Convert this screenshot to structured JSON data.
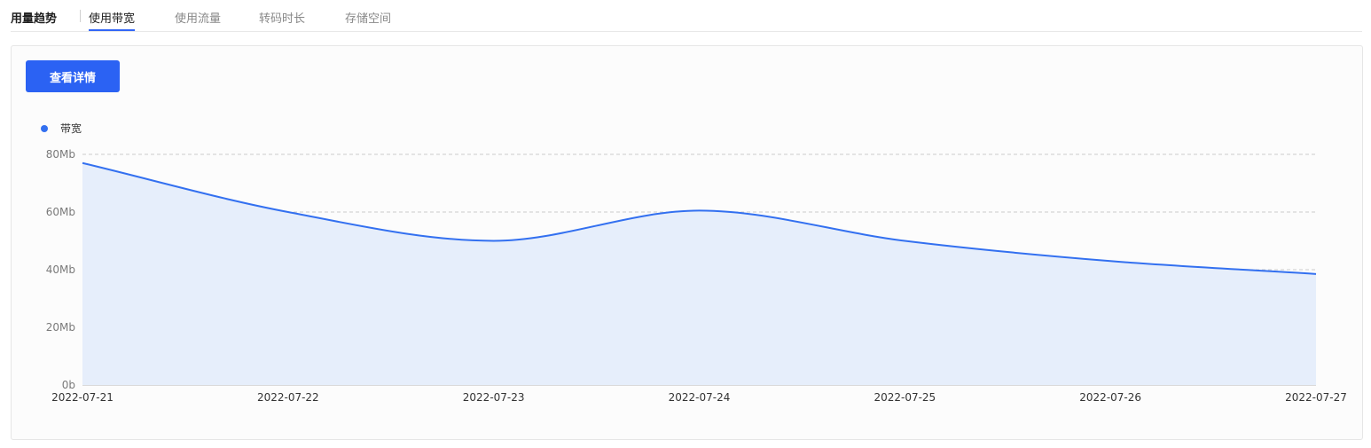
{
  "tabs": {
    "title": "用量趋势",
    "items": [
      "使用带宽",
      "使用流量",
      "转码时长",
      "存储空间"
    ],
    "active_index": 0
  },
  "panel": {
    "detail_button": "查看详情"
  },
  "colors": {
    "accent": "#3367f6",
    "line": "#3370f0",
    "area": "#e6eefb",
    "grid": "#cccccc"
  },
  "chart_data": {
    "type": "area",
    "legend": [
      "带宽"
    ],
    "legend_position": "top-left",
    "x": [
      "2022-07-21",
      "2022-07-22",
      "2022-07-23",
      "2022-07-24",
      "2022-07-25",
      "2022-07-26",
      "2022-07-27"
    ],
    "series": [
      {
        "name": "带宽",
        "values": [
          77,
          60,
          50,
          60.5,
          50,
          43,
          38.5
        ]
      }
    ],
    "y_ticks": [
      "0b",
      "20Mb",
      "40Mb",
      "60Mb",
      "80Mb"
    ],
    "ylim": [
      0,
      80
    ],
    "grid": true,
    "smooth": true
  }
}
